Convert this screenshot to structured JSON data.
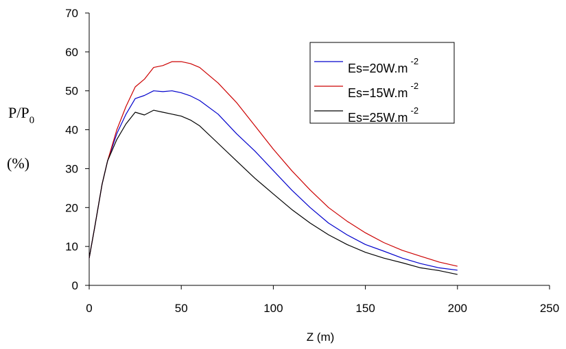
{
  "chart_data": {
    "type": "line",
    "xlabel": "Z (m)",
    "ylabel_main": "P/P",
    "ylabel_sub": "0",
    "ylabel_unit": "(%)",
    "xlim": [
      0,
      250
    ],
    "ylim": [
      0,
      70
    ],
    "xticks": [
      0,
      50,
      100,
      150,
      200,
      250
    ],
    "yticks": [
      0,
      10,
      20,
      30,
      40,
      50,
      60,
      70
    ],
    "grid": false,
    "legend_position": "top-right",
    "series": [
      {
        "name": "Es=20W.m",
        "name_sup": "-2",
        "color": "#0000cc",
        "x": [
          0,
          3,
          7,
          10,
          15,
          20,
          25,
          30,
          35,
          40,
          45,
          50,
          55,
          60,
          70,
          80,
          90,
          100,
          110,
          120,
          130,
          140,
          150,
          160,
          170,
          180,
          190,
          200
        ],
        "y": [
          7,
          15,
          26,
          32,
          39,
          44,
          48,
          48.8,
          50,
          49.8,
          50,
          49.5,
          48.7,
          47.5,
          44,
          39,
          34.5,
          29.5,
          24.5,
          20,
          16,
          13,
          10.5,
          8.8,
          7,
          5.6,
          4.5,
          3.9
        ]
      },
      {
        "name": "Es=15W.m",
        "name_sup": "-2",
        "color": "#cc0000",
        "x": [
          0,
          3,
          7,
          10,
          15,
          20,
          25,
          30,
          35,
          40,
          45,
          50,
          55,
          60,
          70,
          80,
          90,
          100,
          110,
          120,
          130,
          140,
          150,
          160,
          170,
          180,
          190,
          200
        ],
        "y": [
          7,
          15,
          26,
          32,
          40,
          46,
          51,
          53,
          56,
          56.5,
          57.5,
          57.5,
          57,
          56,
          52,
          47,
          41,
          35,
          29.5,
          24.5,
          20,
          16.5,
          13.5,
          11,
          9,
          7.5,
          6,
          4.9
        ]
      },
      {
        "name": "Es=25W.m",
        "name_sup": "-2",
        "color": "#000000",
        "x": [
          0,
          3,
          7,
          10,
          15,
          20,
          25,
          30,
          35,
          40,
          45,
          50,
          55,
          60,
          70,
          80,
          90,
          100,
          110,
          120,
          130,
          140,
          150,
          160,
          170,
          180,
          190,
          200
        ],
        "y": [
          7,
          15,
          26,
          32,
          37.5,
          41.5,
          44.5,
          43.8,
          45,
          44.5,
          44,
          43.5,
          42.5,
          41,
          36.5,
          32,
          27.5,
          23.5,
          19.5,
          16,
          13,
          10.5,
          8.5,
          7,
          5.8,
          4.5,
          3.8,
          2.8
        ]
      }
    ]
  }
}
